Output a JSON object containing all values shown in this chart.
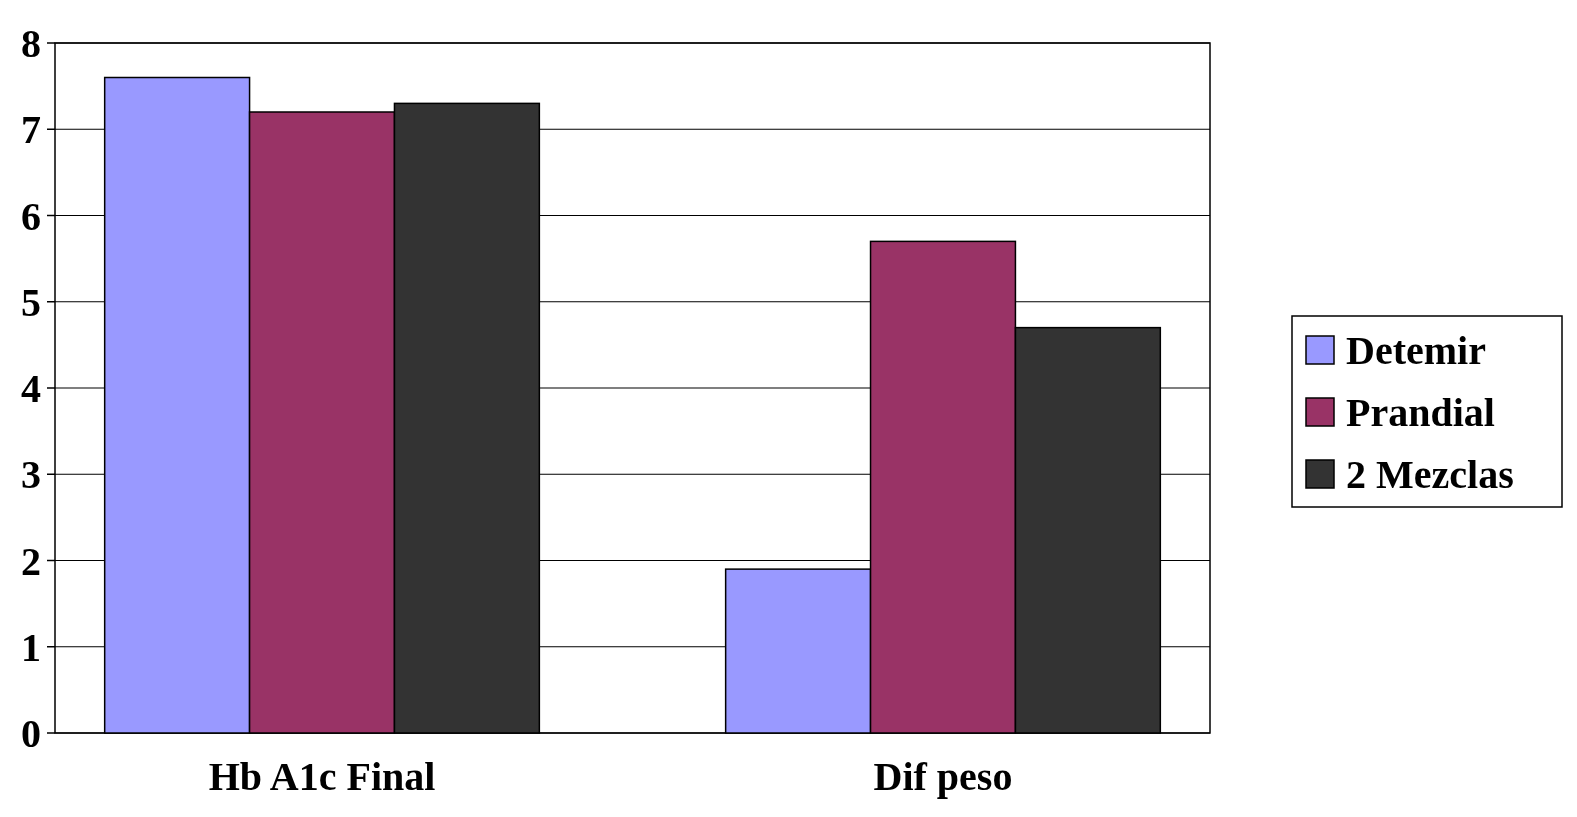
{
  "chart_data": {
    "type": "bar",
    "categories": [
      "Hb A1c Final",
      "Dif peso"
    ],
    "series": [
      {
        "name": "Detemir",
        "color": "#9999ff",
        "values": [
          7.6,
          1.9
        ]
      },
      {
        "name": "Prandial",
        "color": "#993366",
        "values": [
          7.2,
          5.7
        ]
      },
      {
        "name": "2 Mezclas",
        "color": "#333333",
        "values": [
          7.3,
          4.7
        ]
      }
    ],
    "ylim": [
      0,
      8
    ],
    "yticks": [
      0,
      1,
      2,
      3,
      4,
      5,
      6,
      7,
      8
    ],
    "grid": "y",
    "legend": "right"
  }
}
